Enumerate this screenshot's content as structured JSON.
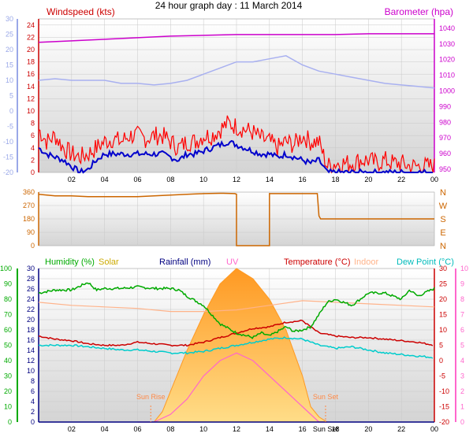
{
  "page": {
    "title": "24 hour graph day : 11 March 2014",
    "time_ticks": [
      "02",
      "04",
      "06",
      "08",
      "10",
      "12",
      "14",
      "16",
      "18",
      "20",
      "22",
      "00"
    ],
    "sun_set_label": "Sun Set"
  },
  "colors": {
    "background": "#ffffff",
    "plot_bg_top": "#ffffff",
    "plot_bg_bottom": "#d8d8d8",
    "grid": "#c8c8c8",
    "wind_gust": "#ff0000",
    "wind_avg": "#0000cc",
    "barometer": "#cc00cc",
    "barometer_band": "#a8b0f0",
    "wind_dir": "#cc6600",
    "humidity": "#00aa00",
    "solar": "#ffaa33",
    "rainfall": "#000080",
    "uv": "#ff66cc",
    "temperature": "#cc0000",
    "indoor": "#ffb38a",
    "dew_point": "#00cccc",
    "sun_label": "#ff8844"
  },
  "chart_data": [
    {
      "type": "line",
      "name": "wind-barometer",
      "title": "",
      "x_range": [
        0,
        24
      ],
      "left_axis": {
        "label": "Windspeed (kts)",
        "ticks": [
          0,
          2,
          4,
          6,
          8,
          10,
          12,
          14,
          16,
          18,
          20,
          22,
          24
        ],
        "range": [
          0,
          25
        ]
      },
      "outer_left_axis": {
        "ticks": [
          -20,
          -15,
          -10,
          -5,
          0,
          5,
          10,
          15,
          20,
          25,
          30
        ],
        "range": [
          -20,
          30
        ]
      },
      "right_axis": {
        "label": "Barometer (hpa)",
        "ticks": [
          950,
          960,
          970,
          980,
          990,
          1000,
          1010,
          1020,
          1030,
          1040
        ],
        "range": [
          948,
          1046
        ]
      },
      "series": [
        {
          "name": "Windspeed (kts)",
          "x": [
            0,
            0.5,
            1,
            1.5,
            2,
            2.5,
            3,
            3.5,
            4,
            4.5,
            5,
            5.5,
            6,
            6.5,
            7,
            7.5,
            8,
            8.5,
            9,
            9.5,
            10,
            10.5,
            11,
            11.5,
            12,
            12.5,
            13,
            13.5,
            14,
            14.5,
            15,
            15.5,
            16,
            16.5,
            17,
            17.5,
            18,
            18.5,
            19,
            19.5,
            20,
            20.5,
            21,
            21.5,
            22,
            22.5,
            23,
            23.5,
            24
          ],
          "values": [
            7,
            5,
            6,
            4,
            3,
            2.5,
            3,
            4,
            5,
            5.5,
            5,
            6,
            6,
            5.5,
            6,
            6,
            5,
            4,
            5,
            5,
            6,
            6,
            7,
            8,
            7.5,
            7,
            6.5,
            5.5,
            5,
            4,
            5,
            4.5,
            6,
            5,
            5,
            1,
            1.5,
            1.5,
            1.5,
            2,
            2,
            1.5,
            2,
            1.5,
            1.5,
            1,
            1,
            1,
            1
          ]
        },
        {
          "name": "Average windspeed",
          "x": [
            0,
            0.5,
            1,
            1.5,
            2,
            2.5,
            3,
            3.5,
            4,
            4.5,
            5,
            5.5,
            6,
            6.5,
            7,
            7.5,
            8,
            8.5,
            9,
            9.5,
            10,
            10.5,
            11,
            11.5,
            12,
            12.5,
            13,
            13.5,
            14,
            14.5,
            15,
            15.5,
            16,
            16.5,
            17,
            17.5,
            18,
            18.5,
            19,
            19.5,
            20,
            20.5,
            21,
            21.5,
            22,
            22.5,
            23,
            23.5,
            24
          ],
          "values": [
            4,
            3,
            2.5,
            2,
            1,
            0,
            0.5,
            2,
            3,
            3,
            3,
            3,
            3,
            3,
            3,
            3,
            2.5,
            2,
            3,
            3,
            3.5,
            4,
            4.5,
            5,
            4.5,
            4,
            3.5,
            3,
            3,
            2.5,
            3,
            2.5,
            2,
            1.5,
            2,
            0,
            0,
            0,
            0,
            0,
            0,
            0,
            0,
            0,
            0,
            0,
            0,
            0,
            0
          ]
        },
        {
          "name": "Barometer (hpa)",
          "x": [
            0,
            2,
            4,
            6,
            8,
            10,
            12,
            14,
            16,
            18,
            20,
            22,
            24
          ],
          "values": [
            1031,
            1032,
            1033,
            1034,
            1035,
            1035.5,
            1036,
            1036,
            1036,
            1036,
            1036.5,
            1036.5,
            1036.5
          ]
        },
        {
          "name": "Wind chill band",
          "x": [
            0,
            1,
            2,
            3,
            4,
            5,
            6,
            7,
            8,
            9,
            10,
            11,
            12,
            13,
            14,
            15,
            16,
            17,
            18,
            19,
            20,
            21,
            22,
            23,
            24
          ],
          "values": [
            4,
            4.5,
            4,
            4,
            4,
            3,
            3,
            2.5,
            3,
            4,
            6,
            8,
            10,
            10,
            11,
            12,
            9,
            7,
            6,
            5,
            4,
            3,
            2.5,
            2,
            1.5
          ]
        }
      ]
    },
    {
      "type": "line",
      "name": "wind-direction",
      "title": "",
      "x_range": [
        0,
        24
      ],
      "left_axis": {
        "ticks": [
          0,
          90,
          180,
          270,
          360
        ],
        "range": [
          0,
          360
        ]
      },
      "right_axis": {
        "ticks": [
          "N",
          "W",
          "S",
          "E",
          "N"
        ]
      },
      "series": [
        {
          "name": "Wind direction",
          "x": [
            0,
            0.5,
            1,
            2,
            3,
            4,
            5,
            6,
            7,
            7.5,
            8,
            9,
            10,
            11,
            11.2,
            11.9,
            12,
            12,
            12.5,
            13,
            13.5,
            14,
            14,
            15,
            16,
            16.9,
            17,
            17.1,
            17.5,
            18,
            19,
            20,
            21,
            22,
            23,
            24
          ],
          "values": [
            345,
            340,
            335,
            335,
            330,
            330,
            330,
            330,
            335,
            338,
            340,
            345,
            350,
            352,
            352,
            350,
            345,
            0,
            0,
            0,
            0,
            0,
            350,
            350,
            350,
            350,
            200,
            180,
            180,
            180,
            180,
            180,
            180,
            180,
            180,
            180
          ]
        }
      ]
    },
    {
      "type": "line",
      "name": "temp-humidity",
      "title": "",
      "x_range": [
        0,
        24
      ],
      "legend": [
        "Humidity (%)",
        "Solar",
        "Rainfall (mm)",
        "UV",
        "Temperature (°C)",
        "Indoor",
        "Dew Point (°C)"
      ],
      "humidity_axis": {
        "ticks": [
          0,
          10,
          20,
          30,
          40,
          50,
          60,
          70,
          80,
          90,
          100
        ],
        "range": [
          0,
          100
        ]
      },
      "rain_axis": {
        "ticks": [
          0,
          2,
          4,
          6,
          8,
          10,
          12,
          14,
          16,
          18,
          20,
          22,
          24,
          26,
          28,
          30
        ],
        "range": [
          0,
          30
        ]
      },
      "temp_axis": {
        "ticks": [
          -20,
          -15,
          -10,
          -5,
          0,
          5,
          10,
          15,
          20,
          25,
          30
        ],
        "range": [
          -20,
          30
        ]
      },
      "uv_axis": {
        "ticks": [
          0,
          1,
          2,
          3,
          4,
          5,
          6,
          7,
          8,
          9,
          10
        ],
        "range": [
          0,
          10
        ]
      },
      "series": [
        {
          "name": "Humidity (%)",
          "x": [
            0,
            1,
            2,
            3,
            3.5,
            4,
            5,
            6,
            7,
            8,
            8.5,
            9,
            10,
            10.5,
            11,
            12,
            13,
            13.5,
            14,
            15,
            15.5,
            16,
            16.5,
            17,
            17.5,
            18,
            19,
            20,
            21,
            22,
            22.5,
            23,
            24
          ],
          "values": [
            84,
            86,
            86,
            91,
            86,
            87,
            87,
            88,
            87,
            87,
            86,
            82,
            76,
            70,
            64,
            58,
            55,
            58,
            56,
            62,
            59,
            60,
            62,
            70,
            78,
            80,
            76,
            84,
            84,
            80,
            86,
            82,
            87
          ]
        },
        {
          "name": "Solar",
          "x": [
            6,
            7,
            7.5,
            8,
            9,
            10,
            11,
            12,
            13,
            14,
            15,
            16,
            16.5,
            17,
            17.5
          ],
          "values": [
            0,
            0,
            2,
            6,
            14,
            21,
            27,
            30,
            28,
            24,
            18,
            9,
            3,
            1,
            0
          ]
        },
        {
          "name": "UV",
          "x": [
            6,
            7,
            8,
            9,
            10,
            11,
            12,
            13,
            14,
            15,
            16,
            17,
            17.5
          ],
          "values": [
            0,
            0,
            0.5,
            1.5,
            3,
            4,
            4.5,
            4,
            3,
            2,
            1,
            0,
            0
          ]
        },
        {
          "name": "Indoor",
          "x": [
            0,
            2,
            4,
            6,
            8,
            10,
            12,
            14,
            16,
            18,
            20,
            22,
            24
          ],
          "values": [
            19,
            18,
            17.5,
            17,
            16,
            16,
            16.5,
            18,
            19.5,
            19,
            18.5,
            18,
            17.5
          ]
        },
        {
          "name": "Temperature (°C)",
          "x": [
            0,
            1,
            2,
            3,
            4,
            5,
            6,
            7,
            8,
            9,
            10,
            11,
            12,
            13,
            14,
            15,
            16,
            16.5,
            17,
            18,
            19,
            20,
            21,
            22,
            23,
            24
          ],
          "values": [
            8,
            7,
            6.5,
            5.5,
            5,
            5,
            6,
            5.5,
            5,
            5,
            6,
            7.5,
            9,
            10.5,
            11,
            12.5,
            13,
            11,
            9,
            8,
            7.5,
            7.5,
            7,
            6.5,
            6,
            5
          ]
        },
        {
          "name": "Dew Point (°C)",
          "x": [
            0,
            1,
            2,
            3,
            4,
            5,
            6,
            7,
            8,
            9,
            10,
            11,
            12,
            13,
            14,
            15,
            16,
            17,
            18,
            19,
            20,
            21,
            22,
            23,
            24
          ],
          "values": [
            5,
            5,
            5,
            4.5,
            4,
            3.5,
            3.5,
            3,
            2.5,
            2.5,
            3,
            4,
            5,
            6,
            7,
            7.5,
            7,
            5,
            4,
            4.5,
            3.5,
            2.5,
            2,
            1.5,
            1
          ]
        },
        {
          "name": "Rainfall (mm)",
          "x": [
            0,
            24
          ],
          "values": [
            0,
            0
          ]
        }
      ],
      "annotations": [
        {
          "text": "Sun Rise",
          "x": 6.8
        },
        {
          "text": "Sun Set",
          "x": 17.4
        }
      ]
    }
  ]
}
